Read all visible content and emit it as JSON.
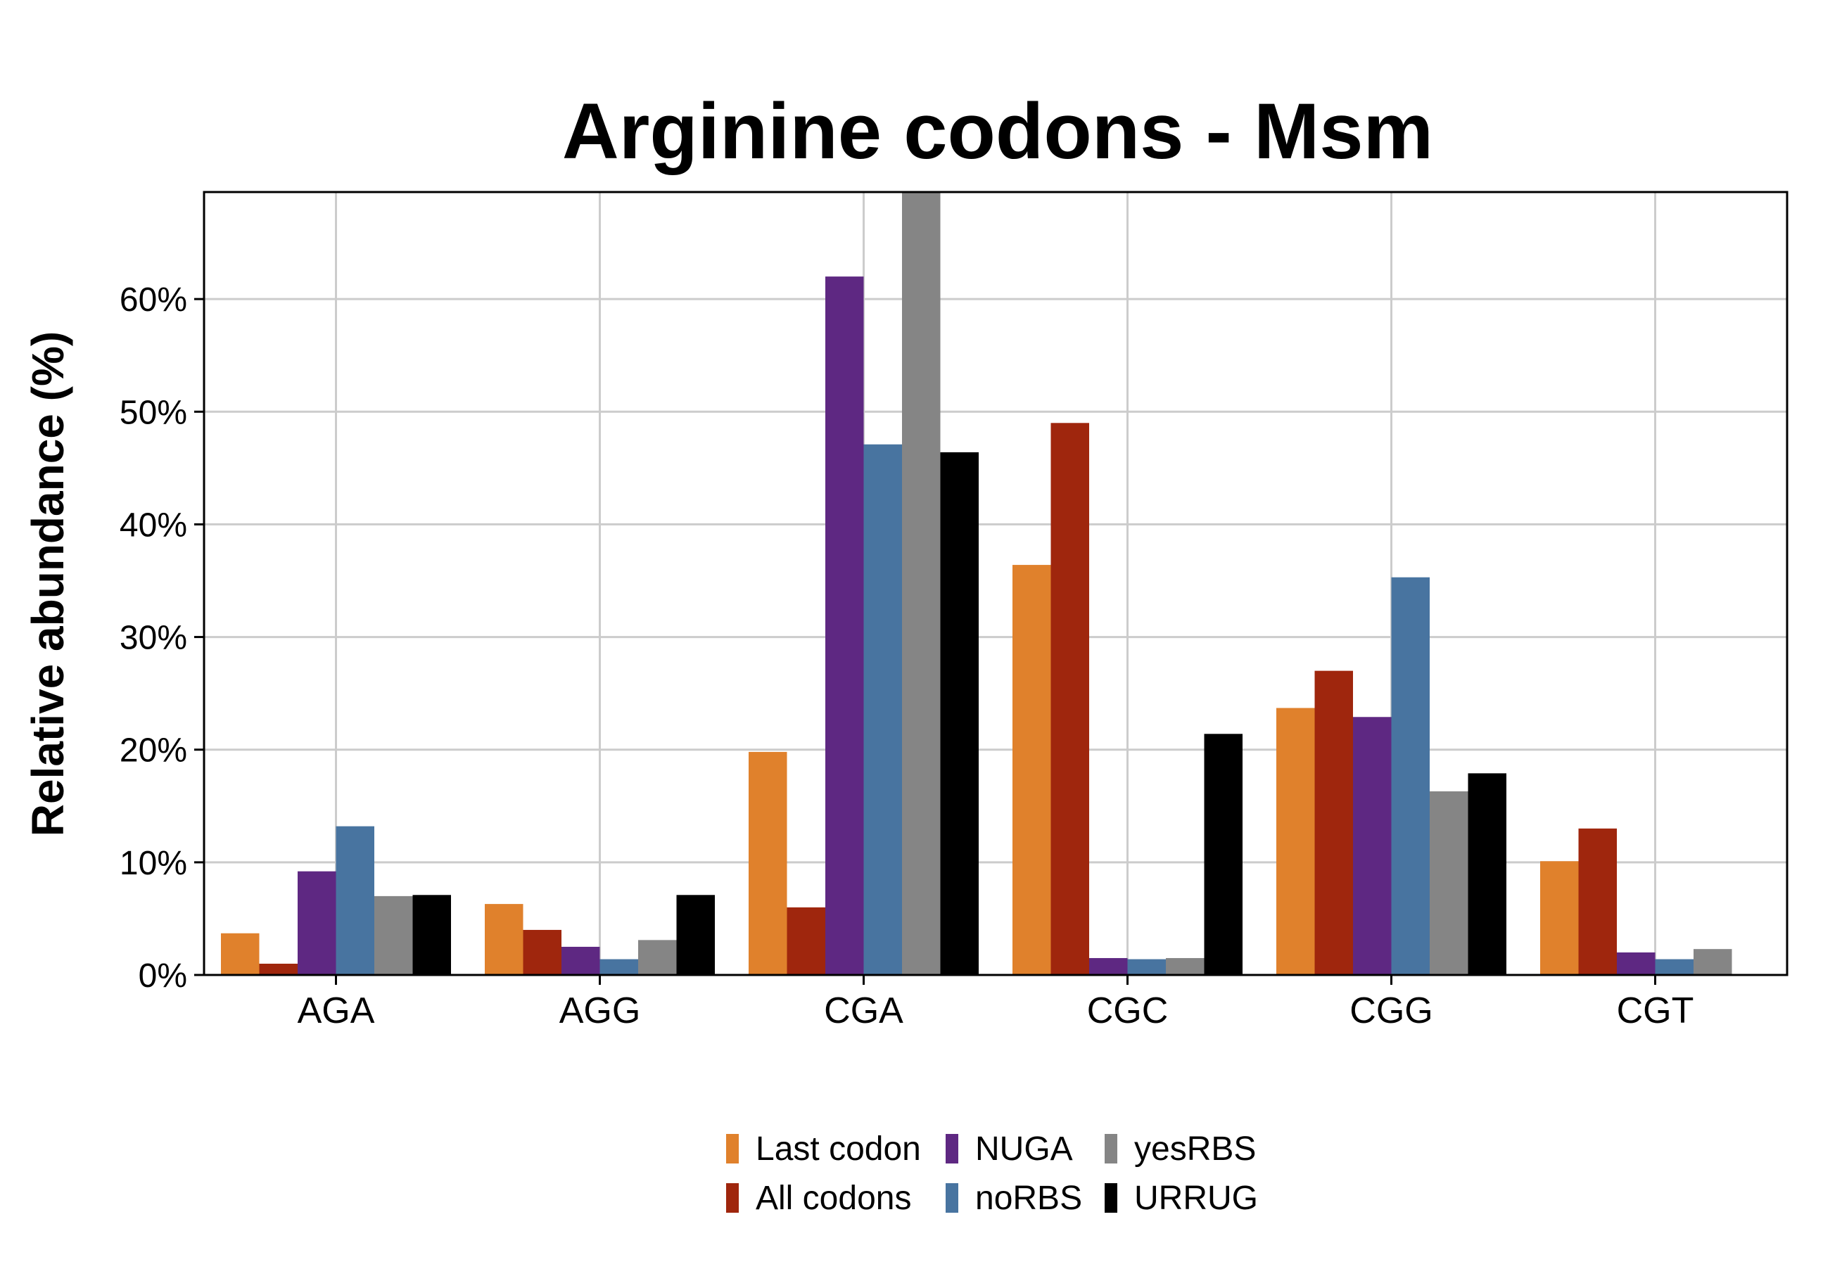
{
  "chart_data": {
    "type": "bar",
    "title": "Arginine codons - Msm",
    "xlabel": "",
    "ylabel": "Relative abundance (%)",
    "ylim": [
      0,
      0.695
    ],
    "yticks": [
      0,
      0.1,
      0.2,
      0.3,
      0.4,
      0.5,
      0.6
    ],
    "ytick_labels": [
      "0%",
      "10%",
      "20%",
      "30%",
      "40%",
      "50%",
      "60%"
    ],
    "grid": true,
    "legend_position": "bottom",
    "categories": [
      "AGA",
      "AGG",
      "CGA",
      "CGC",
      "CGG",
      "CGT"
    ],
    "series": [
      {
        "name": "Last codon",
        "color": "#e0812c",
        "values": [
          0.037,
          0.063,
          0.198,
          0.364,
          0.237,
          0.101
        ]
      },
      {
        "name": "All codons",
        "color": "#9f260d",
        "values": [
          0.01,
          0.04,
          0.06,
          0.49,
          0.27,
          0.13
        ]
      },
      {
        "name": "NUGA",
        "color": "#5e2882",
        "values": [
          0.092,
          0.025,
          0.62,
          0.015,
          0.229,
          0.02
        ]
      },
      {
        "name": "noRBS",
        "color": "#4874a0",
        "values": [
          0.132,
          0.014,
          0.471,
          0.014,
          0.353,
          0.014
        ]
      },
      {
        "name": "yesRBS",
        "color": "#858585",
        "values": [
          0.07,
          0.031,
          0.71,
          0.015,
          0.163,
          0.023
        ]
      },
      {
        "name": "URRUG",
        "color": "#000000",
        "values": [
          0.071,
          0.071,
          0.464,
          0.214,
          0.179,
          0.0
        ]
      }
    ]
  }
}
